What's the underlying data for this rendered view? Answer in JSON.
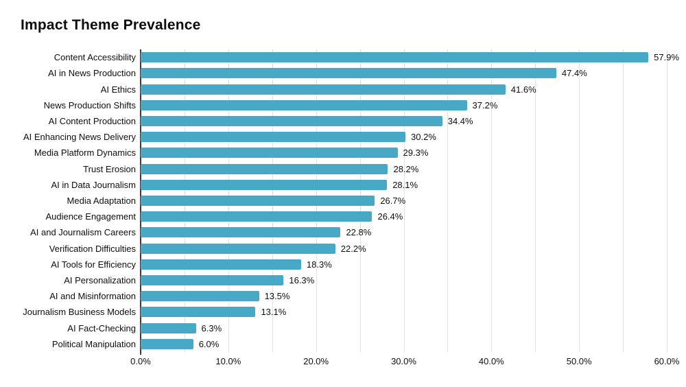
{
  "title": "Impact Theme Prevalence",
  "colors": {
    "bar": "#48a9c6",
    "gridline": "#e2e2e2",
    "axis_line": "#3b3b3b",
    "text": "#0d0d0d",
    "background": "#ffffff"
  },
  "chart_data": {
    "type": "bar",
    "orientation": "horizontal",
    "title": "Impact Theme Prevalence",
    "xlabel": "",
    "ylabel": "",
    "xlim": [
      0,
      60
    ],
    "x_tick_labels": [
      "0.0%",
      "10.0%",
      "20.0%",
      "30.0%",
      "40.0%",
      "50.0%",
      "60.0%"
    ],
    "x_tick_values": [
      0,
      10,
      20,
      30,
      40,
      50,
      60
    ],
    "gridline_interval_pct": 5,
    "grid": "vertical light-gray gridlines every 5%, behind bars",
    "legend": "none",
    "categories": [
      "Content Accessibility",
      "AI in News Production",
      "AI Ethics",
      "News Production Shifts",
      "AI Content Production",
      "AI Enhancing News Delivery",
      "Media Platform Dynamics",
      "Trust Erosion",
      "AI in Data Journalism",
      "Media Adaptation",
      "Audience Engagement",
      "AI and Journalism Careers",
      "Verification Difficulties",
      "AI Tools for Efficiency",
      "AI Personalization",
      "AI and Misinformation",
      "Journalism Business Models",
      "AI Fact-Checking",
      "Political Manipulation"
    ],
    "values": [
      57.9,
      47.4,
      41.6,
      37.2,
      34.4,
      30.2,
      29.3,
      28.2,
      28.1,
      26.7,
      26.4,
      22.8,
      22.2,
      18.3,
      16.3,
      13.5,
      13.1,
      6.3,
      6.0
    ],
    "value_labels": [
      "57.9%",
      "47.4%",
      "41.6%",
      "37.2%",
      "34.4%",
      "30.2%",
      "29.3%",
      "28.2%",
      "28.1%",
      "26.7%",
      "26.4%",
      "22.8%",
      "22.2%",
      "18.3%",
      "16.3%",
      "13.5%",
      "13.1%",
      "6.3%",
      "6.0%"
    ]
  }
}
